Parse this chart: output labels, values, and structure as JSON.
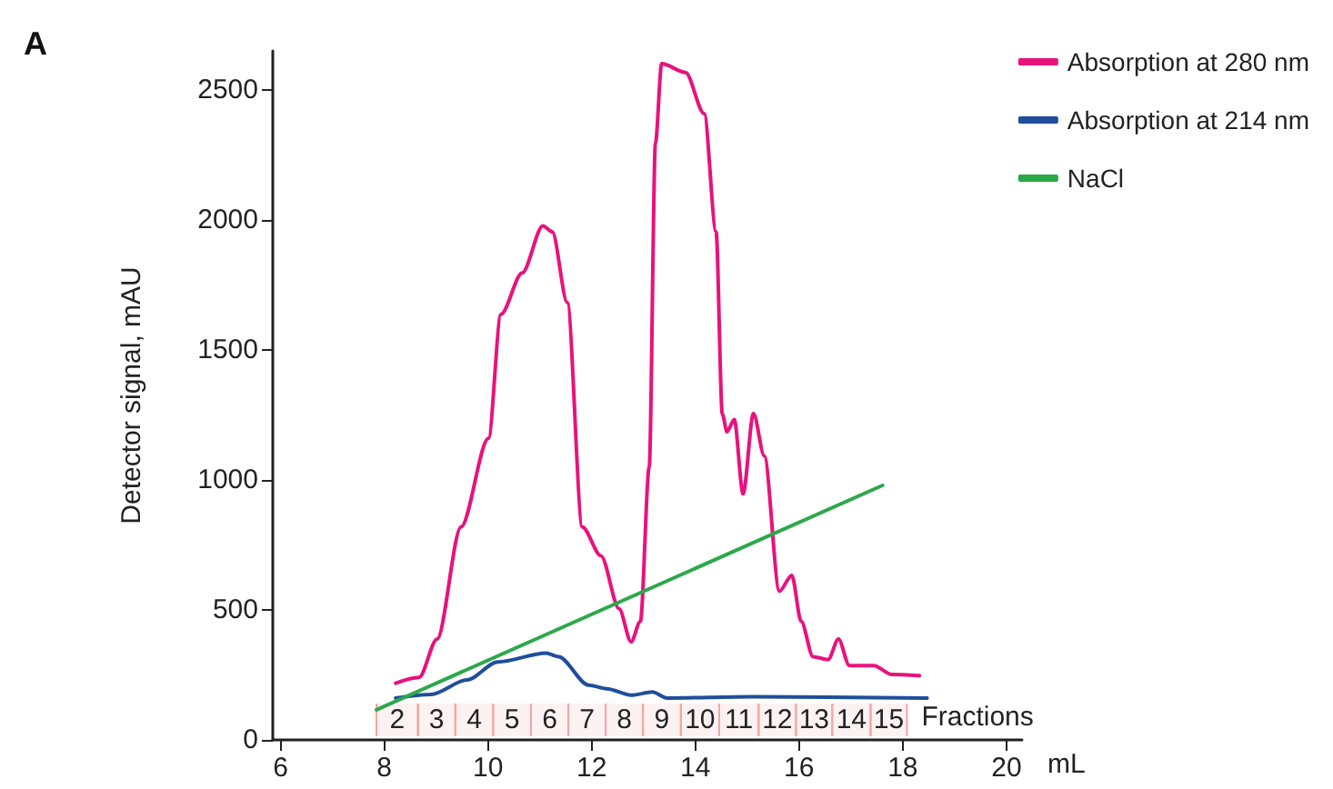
{
  "chart_data": {
    "type": "line",
    "title": "A",
    "xlabel": "mL",
    "ylabel": "Detector signal, mAU",
    "xlim": [
      5.85,
      20.3
    ],
    "xticks": [
      6,
      8,
      10,
      12,
      14,
      16,
      18,
      20
    ],
    "ylim": [
      0,
      2650
    ],
    "yticks": [
      0,
      500,
      1000,
      1500,
      2000,
      2500
    ],
    "grid": false,
    "legend": "top right",
    "marker": "none",
    "line_style": "solid",
    "series": [
      {
        "name": "Absorption at 280 nm",
        "color": "#e8127c",
        "x": [
          8.22,
          8.67,
          9.02,
          9.48,
          10.01,
          10.25,
          10.66,
          11.06,
          11.24,
          11.53,
          11.82,
          12.18,
          12.53,
          12.76,
          12.94,
          13.11,
          13.23,
          13.35,
          13.81,
          14.17,
          14.4,
          14.52,
          14.61,
          14.75,
          14.92,
          15.12,
          15.33,
          15.62,
          15.86,
          16.04,
          16.27,
          16.56,
          16.76,
          16.97,
          17.44,
          17.79,
          18.32
        ],
        "values": [
          218,
          240,
          388,
          819,
          1160,
          1637,
          1796,
          1977,
          1954,
          1682,
          819,
          708,
          504,
          377,
          456,
          1049,
          2295,
          2601,
          2567,
          2409,
          1954,
          1253,
          1185,
          1232,
          946,
          1255,
          1092,
          572,
          633,
          456,
          320,
          309,
          388,
          286,
          286,
          252,
          247
        ]
      },
      {
        "name": "Absorption at 214 nm",
        "color": "#1f4e9c",
        "x": [
          8.22,
          8.9,
          9.6,
          10.19,
          11.12,
          11.36,
          11.94,
          12.29,
          12.76,
          13.17,
          13.46,
          15.1,
          18.47
        ],
        "values": [
          161,
          175,
          231,
          300,
          334,
          320,
          211,
          197,
          172,
          184,
          161,
          166,
          161
        ]
      },
      {
        "name": "NaCl",
        "color": "#2ca84a",
        "x": [
          7.85,
          17.61
        ],
        "values": [
          116,
          979
        ]
      }
    ],
    "bands": [
      {
        "axis": "x",
        "from": 7.85,
        "to": 8.65,
        "label": "2",
        "color": "#f4a6a6"
      },
      {
        "axis": "x",
        "from": 8.65,
        "to": 9.37,
        "label": "3",
        "color": "#f4a6a6"
      },
      {
        "axis": "x",
        "from": 9.37,
        "to": 10.1,
        "label": "4",
        "color": "#f4a6a6"
      },
      {
        "axis": "x",
        "from": 10.1,
        "to": 10.83,
        "label": "5",
        "color": "#f4a6a6"
      },
      {
        "axis": "x",
        "from": 10.83,
        "to": 11.55,
        "label": "6",
        "color": "#f4a6a6"
      },
      {
        "axis": "x",
        "from": 11.55,
        "to": 12.27,
        "label": "7",
        "color": "#f4a6a6"
      },
      {
        "axis": "x",
        "from": 12.27,
        "to": 12.99,
        "label": "8",
        "color": "#f4a6a6"
      },
      {
        "axis": "x",
        "from": 12.99,
        "to": 13.72,
        "label": "9",
        "color": "#f4a6a6"
      },
      {
        "axis": "x",
        "from": 13.72,
        "to": 14.46,
        "label": "10",
        "color": "#f4a6a6"
      },
      {
        "axis": "x",
        "from": 14.46,
        "to": 15.22,
        "label": "11",
        "color": "#f4a6a6"
      },
      {
        "axis": "x",
        "from": 15.22,
        "to": 15.94,
        "label": "12",
        "color": "#f4a6a6"
      },
      {
        "axis": "x",
        "from": 15.94,
        "to": 16.64,
        "label": "13",
        "color": "#f4a6a6"
      },
      {
        "axis": "x",
        "from": 16.64,
        "to": 17.38,
        "label": "14",
        "color": "#f4a6a6"
      },
      {
        "axis": "x",
        "from": 17.38,
        "to": 18.08,
        "label": "15",
        "color": "#f4a6a6"
      }
    ],
    "annotations": [
      "Fractions"
    ]
  }
}
